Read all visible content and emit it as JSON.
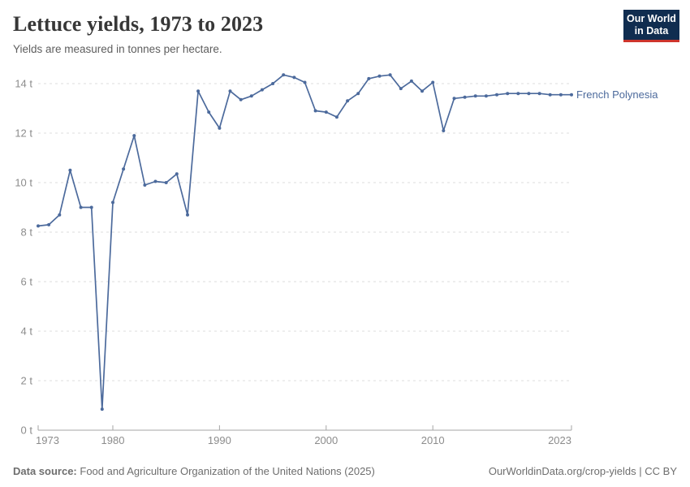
{
  "header": {
    "title": "Lettuce yields, 1973 to 2023",
    "subtitle": "Yields are measured in tonnes per hectare."
  },
  "logo": {
    "line1": "Our World",
    "line2": "in Data"
  },
  "chart_data": {
    "type": "line",
    "title": "Lettuce yields, 1973 to 2023",
    "ylabel": "tonnes per hectare",
    "xlabel": "",
    "xlim": [
      1973,
      2023
    ],
    "ylim": [
      0,
      14
    ],
    "yticks": [
      0,
      2,
      4,
      6,
      8,
      10,
      12,
      14
    ],
    "ytick_suffix": " t",
    "xticks": [
      1973,
      1980,
      1990,
      2000,
      2010,
      2023
    ],
    "grid": "horizontal-dashed",
    "legend_position": "end-of-line",
    "x": [
      1973,
      1974,
      1975,
      1976,
      1977,
      1978,
      1979,
      1980,
      1981,
      1982,
      1983,
      1984,
      1985,
      1986,
      1987,
      1988,
      1989,
      1990,
      1991,
      1992,
      1993,
      1994,
      1995,
      1996,
      1997,
      1998,
      1999,
      2000,
      2001,
      2002,
      2003,
      2004,
      2005,
      2006,
      2007,
      2008,
      2009,
      2010,
      2011,
      2012,
      2013,
      2014,
      2015,
      2016,
      2017,
      2018,
      2019,
      2020,
      2021,
      2022,
      2023
    ],
    "series": [
      {
        "name": "French Polynesia",
        "color": "#4C6A9C",
        "values": [
          8.25,
          8.3,
          8.7,
          10.5,
          9.0,
          9.0,
          0.85,
          9.2,
          10.55,
          11.9,
          9.9,
          10.05,
          10.0,
          10.35,
          8.7,
          13.7,
          12.85,
          12.2,
          13.7,
          13.35,
          13.5,
          13.75,
          14.0,
          14.35,
          14.25,
          14.05,
          12.9,
          12.85,
          12.65,
          13.3,
          13.6,
          14.2,
          14.3,
          14.35,
          13.8,
          14.1,
          13.7,
          14.05,
          12.1,
          13.4,
          13.45,
          13.5,
          13.5,
          13.55,
          13.6,
          13.6,
          13.6,
          13.6,
          13.55,
          13.55,
          13.55
        ]
      }
    ]
  },
  "footer": {
    "source_label": "Data source:",
    "source_text": "Food and Agriculture Organization of the United Nations (2025)",
    "credit": "OurWorldinData.org/crop-yields | CC BY"
  },
  "colors": {
    "line": "#4C6A9C",
    "series_label": "#4C6A9C",
    "grid": "#dcdcdc",
    "axis_line": "#a6a6a6",
    "axis_text": "#8c8c8c",
    "logo_bg": "#102D50",
    "logo_accent": "#CE352C"
  }
}
